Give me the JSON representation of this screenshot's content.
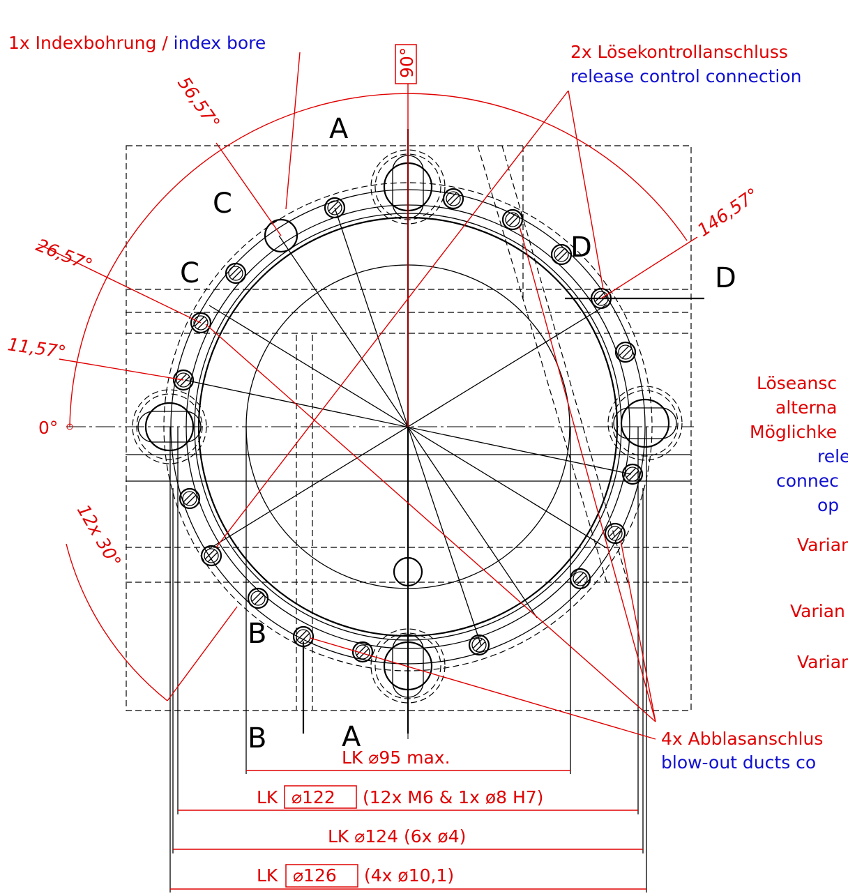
{
  "labels": {
    "index_bore_de": "1x Indexbohrung",
    "slash": "/",
    "index_bore_en": "index bore",
    "release_de": "2x Lösekontrollanschluss",
    "release_en": "release control connection",
    "blowout_de": "4x Abblasanschlus",
    "blowout_en": "blow-out ducts co"
  },
  "angles": [
    "90°",
    "56,57°",
    "146,57°",
    "26,57°",
    "11,57°",
    "0°",
    "12x 30°"
  ],
  "sections": [
    "A",
    "A",
    "B",
    "B",
    "C",
    "C",
    "D",
    "D"
  ],
  "side_note": [
    "Löseansc",
    "alterna",
    "Möglichke",
    "rele",
    "connec",
    "op",
    "Varian",
    "Varian",
    "Varian"
  ],
  "dimensions": [
    {
      "lk": "LK",
      "dia": "⌀95",
      "note": "max."
    },
    {
      "lk": "LK",
      "dia": "⌀122",
      "note": "(12x M6 & 1x ø8 H7)"
    },
    {
      "lk": "LK",
      "dia": "⌀124",
      "note": "(6x ø4)"
    },
    {
      "lk": "LK",
      "dia": "⌀126",
      "note": "(4x ø10,1)"
    }
  ]
}
